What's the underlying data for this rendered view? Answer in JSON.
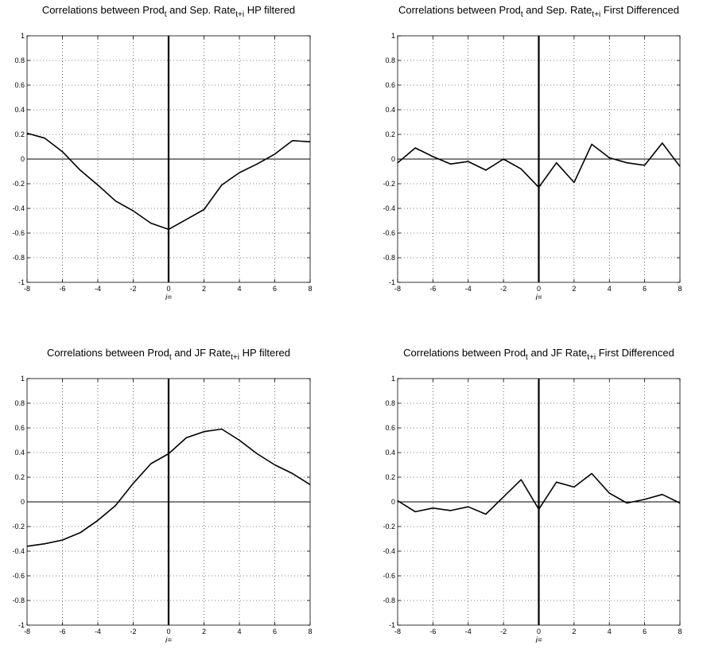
{
  "chart_data": [
    {
      "type": "line",
      "title": {
        "main1": "Correlations between Prod",
        "sub1": "t",
        "main2": " and Sep. Rate",
        "sub2": "t+i",
        "main3": " HP filtered"
      },
      "xlabel": "i=",
      "x": [
        -8,
        -7,
        -6,
        -5,
        -4,
        -3,
        -2,
        -1,
        0,
        1,
        2,
        3,
        4,
        5,
        6,
        7,
        8
      ],
      "series": [
        {
          "values": [
            0.21,
            0.17,
            0.06,
            -0.09,
            -0.21,
            -0.34,
            -0.42,
            -0.52,
            -0.57,
            -0.49,
            -0.41,
            -0.21,
            -0.11,
            -0.04,
            0.04,
            0.15,
            0.14
          ]
        }
      ],
      "xlim": [
        -8,
        8
      ],
      "ylim": [
        -1,
        1
      ],
      "xticks": [
        "-8",
        "-6",
        "-4",
        "-2",
        "0",
        "2",
        "4",
        "6",
        "8"
      ],
      "yticks": [
        "-1",
        "-0.8",
        "-0.6",
        "-0.4",
        "-0.2",
        "0",
        "0.2",
        "0.4",
        "0.6",
        "0.8",
        "1"
      ],
      "grid": true
    },
    {
      "type": "line",
      "title": {
        "main1": "Correlations between Prod",
        "sub1": "t",
        "main2": " and Sep. Rate",
        "sub2": "t+i",
        "main3": " First Differenced"
      },
      "xlabel": "i=",
      "x": [
        -8,
        -7,
        -6,
        -5,
        -4,
        -3,
        -2,
        -1,
        0,
        1,
        2,
        3,
        4,
        5,
        6,
        7,
        8
      ],
      "series": [
        {
          "values": [
            -0.03,
            0.09,
            0.02,
            -0.04,
            -0.02,
            -0.09,
            0.0,
            -0.08,
            -0.23,
            -0.03,
            -0.19,
            0.12,
            0.01,
            -0.03,
            -0.05,
            0.13,
            -0.06
          ]
        }
      ],
      "xlim": [
        -8,
        8
      ],
      "ylim": [
        -1,
        1
      ],
      "xticks": [
        "-8",
        "-6",
        "-4",
        "-2",
        "0",
        "2",
        "4",
        "6",
        "8"
      ],
      "yticks": [
        "-1",
        "-0.8",
        "-0.6",
        "-0.4",
        "-0.2",
        "0",
        "0.2",
        "0.4",
        "0.6",
        "0.8",
        "1"
      ],
      "grid": true
    },
    {
      "type": "line",
      "title": {
        "main1": "Correlations between Prod",
        "sub1": "t",
        "main2": " and JF Rate",
        "sub2": "t+i",
        "main3": " HP filtered"
      },
      "xlabel": "i=",
      "x": [
        -8,
        -7,
        -6,
        -5,
        -4,
        -3,
        -2,
        -1,
        0,
        1,
        2,
        3,
        4,
        5,
        6,
        7,
        8
      ],
      "series": [
        {
          "values": [
            -0.36,
            -0.34,
            -0.31,
            -0.25,
            -0.15,
            -0.03,
            0.15,
            0.31,
            0.39,
            0.52,
            0.57,
            0.59,
            0.5,
            0.39,
            0.3,
            0.23,
            0.14
          ]
        }
      ],
      "xlim": [
        -8,
        8
      ],
      "ylim": [
        -1,
        1
      ],
      "xticks": [
        "-8",
        "-6",
        "-4",
        "-2",
        "0",
        "2",
        "4",
        "6",
        "8"
      ],
      "yticks": [
        "-1",
        "-0.8",
        "-0.6",
        "-0.4",
        "-0.2",
        "0",
        "0.2",
        "0.4",
        "0.6",
        "0.8",
        "1"
      ],
      "grid": true
    },
    {
      "type": "line",
      "title": {
        "main1": "Correlations between Prod",
        "sub1": "t",
        "main2": " and JF Rate",
        "sub2": "t+i",
        "main3": " First Differenced"
      },
      "xlabel": "i=",
      "x": [
        -8,
        -7,
        -6,
        -5,
        -4,
        -3,
        -2,
        -1,
        0,
        1,
        2,
        3,
        4,
        5,
        6,
        7,
        8
      ],
      "series": [
        {
          "values": [
            0.01,
            -0.08,
            -0.05,
            -0.07,
            -0.04,
            -0.1,
            0.04,
            0.18,
            -0.06,
            0.16,
            0.12,
            0.23,
            0.07,
            -0.01,
            0.02,
            0.06,
            -0.01
          ]
        }
      ],
      "xlim": [
        -8,
        8
      ],
      "ylim": [
        -1,
        1
      ],
      "xticks": [
        "-8",
        "-6",
        "-4",
        "-2",
        "0",
        "2",
        "4",
        "6",
        "8"
      ],
      "yticks": [
        "-1",
        "-0.8",
        "-0.6",
        "-0.4",
        "-0.2",
        "0",
        "0.2",
        "0.4",
        "0.6",
        "0.8",
        "1"
      ],
      "grid": true
    }
  ]
}
